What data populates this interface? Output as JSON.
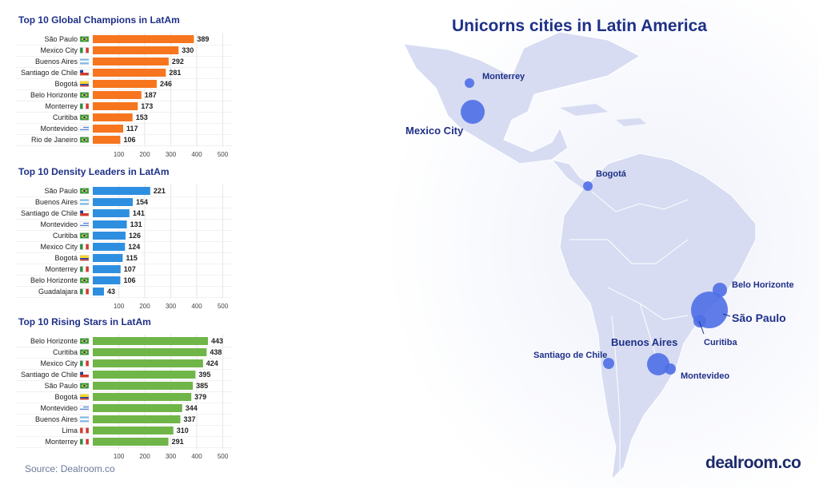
{
  "colors": {
    "orange": "#f7751e",
    "blue": "#2e8fe0",
    "green": "#6fb548",
    "title": "#1f3087",
    "land": "#d7dcf2",
    "bubble": "#4f6fe6"
  },
  "source": "Source: Dealroom.co",
  "brand": "dealroom.co",
  "map": {
    "title": "Unicorns cities in Latin America",
    "cities": [
      {
        "name": "Monterrey",
        "size": "sm"
      },
      {
        "name": "Mexico City",
        "size": "md"
      },
      {
        "name": "Bogotá",
        "size": "sm"
      },
      {
        "name": "Belo Horizonte",
        "size": "sm"
      },
      {
        "name": "São Paulo",
        "size": "lg"
      },
      {
        "name": "Curitiba",
        "size": "sm"
      },
      {
        "name": "Buenos Aires",
        "size": "md"
      },
      {
        "name": "Santiago de Chile",
        "size": "sm"
      },
      {
        "name": "Montevideo",
        "size": "sm"
      }
    ]
  },
  "chart_data": [
    {
      "type": "bar",
      "orientation": "horizontal",
      "title": "Top 10 Global Champions in LatAm",
      "color": "orange",
      "categories": [
        "São Paulo",
        "Mexico City",
        "Buenos Aires",
        "Santiago de Chile",
        "Bogotá",
        "Belo Horizonte",
        "Monterrey",
        "Curitiba",
        "Montevideo",
        "Rio de Janeiro"
      ],
      "flags": [
        "br",
        "mx",
        "ar",
        "cl",
        "co",
        "br",
        "mx",
        "br",
        "uy",
        "br"
      ],
      "values": [
        389,
        330,
        292,
        281,
        246,
        187,
        173,
        153,
        117,
        106
      ],
      "xticks": [
        100,
        200,
        300,
        400,
        500
      ],
      "xlim": [
        0,
        500
      ],
      "grid": true
    },
    {
      "type": "bar",
      "orientation": "horizontal",
      "title": "Top 10 Density Leaders in LatAm",
      "color": "blue",
      "categories": [
        "São Paulo",
        "Buenos Aires",
        "Santiago de Chile",
        "Montevideo",
        "Curitiba",
        "Mexico City",
        "Bogotá",
        "Monterrey",
        "Belo Horizonte",
        "Guadalajara"
      ],
      "flags": [
        "br",
        "ar",
        "cl",
        "uy",
        "br",
        "mx",
        "co",
        "mx",
        "br",
        "mx"
      ],
      "values": [
        221,
        154,
        141,
        131,
        126,
        124,
        115,
        107,
        106,
        43
      ],
      "xticks": [
        100,
        200,
        300,
        400,
        500
      ],
      "xlim": [
        0,
        500
      ],
      "grid": true
    },
    {
      "type": "bar",
      "orientation": "horizontal",
      "title": "Top 10 Rising Stars in LatAm",
      "color": "green",
      "categories": [
        "Belo Horizonte",
        "Curitiba",
        "Mexico City",
        "Santiago de Chile",
        "São Paulo",
        "Bogotá",
        "Montevideo",
        "Buenos Aires",
        "Lima",
        "Monterrey"
      ],
      "flags": [
        "br",
        "br",
        "mx",
        "cl",
        "br",
        "co",
        "uy",
        "ar",
        "pe",
        "mx"
      ],
      "values": [
        443,
        438,
        424,
        395,
        385,
        379,
        344,
        337,
        310,
        291
      ],
      "xticks": [
        100,
        200,
        300,
        400,
        500
      ],
      "xlim": [
        0,
        500
      ],
      "grid": true
    }
  ]
}
